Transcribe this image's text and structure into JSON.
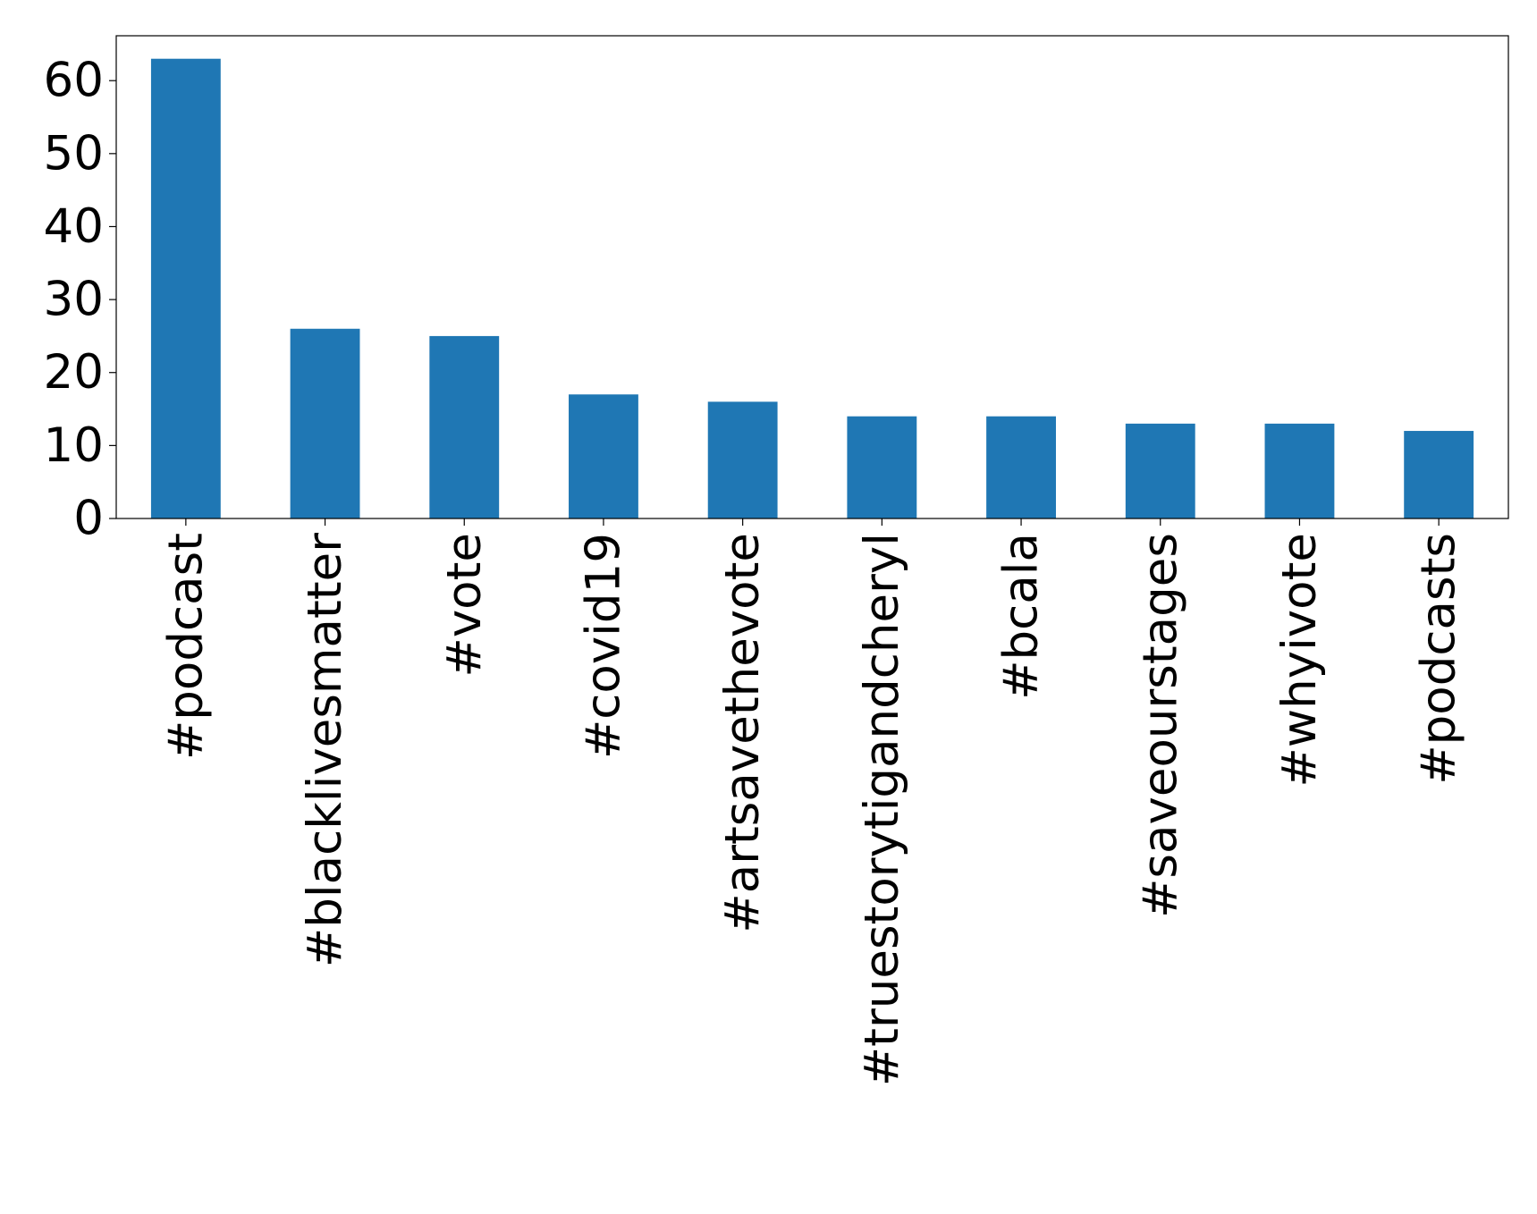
{
  "chart_data": {
    "type": "bar",
    "categories": [
      "#podcast",
      "#blacklivesmatter",
      "#vote",
      "#covid19",
      "#artsavethevote",
      "#truestorytigandcheryl",
      "#bcala",
      "#saveourstages",
      "#whyivote",
      "#podcasts"
    ],
    "values": [
      63,
      26,
      25,
      17,
      16,
      14,
      14,
      13,
      13,
      12
    ],
    "color": "#1f77b4",
    "ylim": [
      0,
      66.15
    ],
    "yticks": [
      0,
      10,
      20,
      30,
      40,
      50,
      60
    ],
    "grid": false
  }
}
